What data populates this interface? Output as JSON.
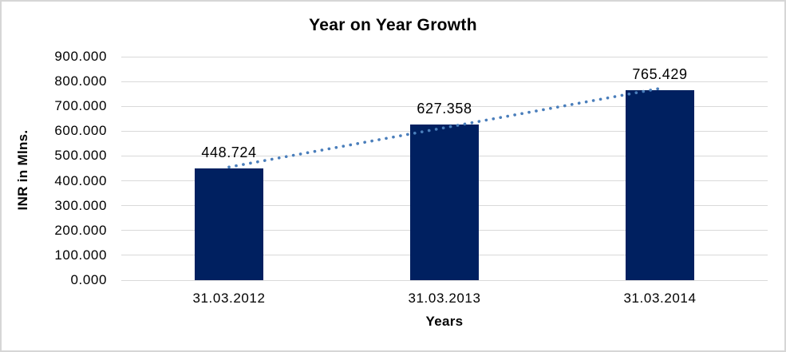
{
  "chart_data": {
    "type": "bar",
    "title": "Year on Year Growth",
    "xlabel": "Years",
    "ylabel": "INR in Mlns.",
    "categories": [
      "31.03.2012",
      "31.03.2013",
      "31.03.2014"
    ],
    "values": [
      448.724,
      627.358,
      765.429
    ],
    "data_labels": [
      "448.724",
      "627.358",
      "765.429"
    ],
    "ylim": [
      0,
      900
    ],
    "ytick_step": 100,
    "ytick_labels": [
      "0.000",
      "100.000",
      "200.000",
      "300.000",
      "400.000",
      "500.000",
      "600.000",
      "700.000",
      "800.000",
      "900.000"
    ],
    "grid": "horizontal-on",
    "legend": "none",
    "trendline": {
      "type": "linear",
      "style": "dotted"
    },
    "colors": {
      "bar": "#002060",
      "trendline": "#4A7EBB",
      "gridline": "#D9D9D9",
      "axis_line": "#D9D9D9",
      "text": "#000000",
      "border": "#D6D6D6",
      "background": "#FFFFFF"
    }
  }
}
